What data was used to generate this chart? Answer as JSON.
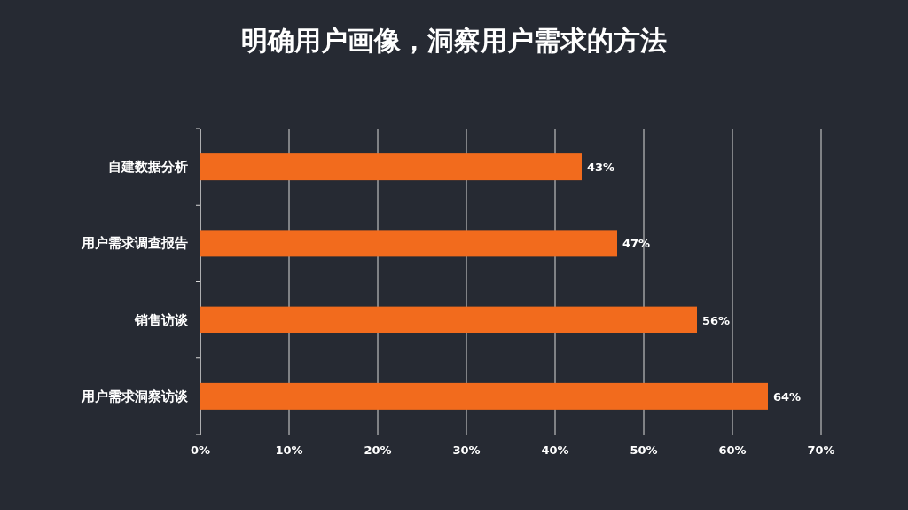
{
  "chart_data": {
    "type": "bar",
    "orientation": "horizontal",
    "title": "明确用户画像，洞察用户需求的方法",
    "categories": [
      "自建数据分析",
      "用户需求调查报告",
      "销售访谈",
      "用户需求洞察访谈"
    ],
    "values": [
      43,
      47,
      56,
      64
    ],
    "color": "#f26b1d",
    "value_labels": [
      "43%",
      "47%",
      "56%",
      "64%"
    ],
    "xlim": [
      0,
      70
    ],
    "xticks": [
      {
        "value": 0,
        "label": "0%"
      },
      {
        "value": 10,
        "label": "10%"
      },
      {
        "value": 20,
        "label": "20%"
      },
      {
        "value": 30,
        "label": "30%"
      },
      {
        "value": 40,
        "label": "40%"
      },
      {
        "value": 50,
        "label": "50%"
      },
      {
        "value": 60,
        "label": "60%"
      },
      {
        "value": 70,
        "label": "70%"
      }
    ],
    "grid": "x"
  }
}
